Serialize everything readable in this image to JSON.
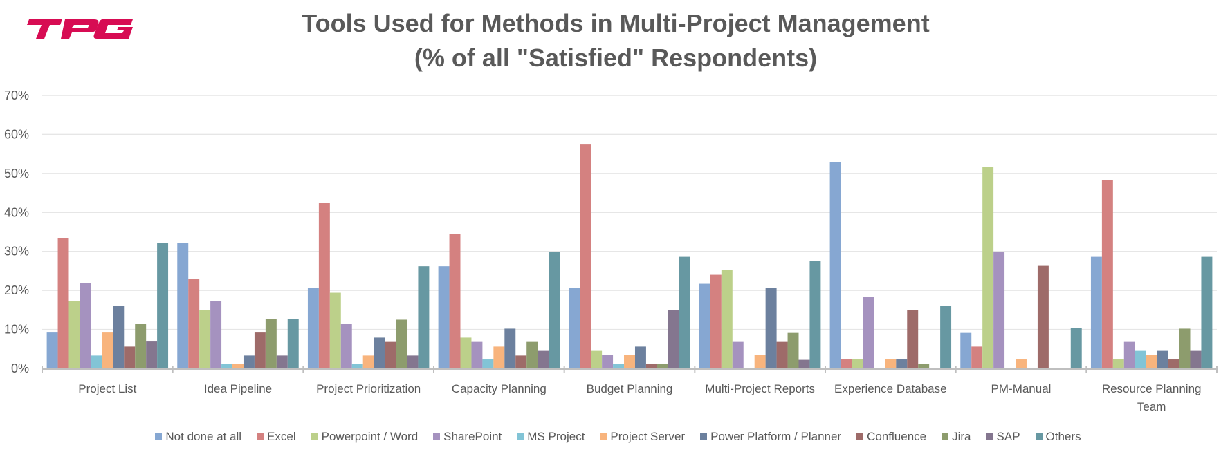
{
  "logo": {
    "text": "TPG",
    "color": "#D70C53"
  },
  "chart_data": {
    "type": "bar",
    "title": "Tools Used for Methods in Multi-Project Management",
    "subtitle": "(% of all \"Satisfied\" Respondents)",
    "xlabel": "",
    "ylabel": "",
    "ylim": [
      0,
      70
    ],
    "yticks": [
      "0%",
      "10%",
      "20%",
      "30%",
      "40%",
      "50%",
      "60%",
      "70%"
    ],
    "ytick_values": [
      0,
      10,
      20,
      30,
      40,
      50,
      60,
      70
    ],
    "grid": true,
    "legend_position": "bottom",
    "categories": [
      [
        "Project List"
      ],
      [
        "Idea Pipeline"
      ],
      [
        "Project Prioritization"
      ],
      [
        "Capacity Planning"
      ],
      [
        "Budget Planning"
      ],
      [
        "Multi-Project Reports"
      ],
      [
        "Experience Database"
      ],
      [
        "PM-Manual"
      ],
      [
        "Resource Planning",
        "Team"
      ]
    ],
    "series": [
      {
        "name": "Not done at all",
        "color": "#86A7D2",
        "values": [
          9.2,
          32.2,
          20.6,
          26.2,
          20.6,
          21.7,
          52.9,
          9.1,
          28.6
        ]
      },
      {
        "name": "Excel",
        "color": "#D48180",
        "values": [
          33.4,
          23.0,
          42.4,
          34.4,
          57.4,
          24.0,
          2.3,
          5.6,
          48.3
        ]
      },
      {
        "name": "Powerpoint / Word",
        "color": "#BCD08A",
        "values": [
          17.2,
          14.9,
          19.4,
          7.9,
          4.5,
          25.2,
          2.3,
          51.6,
          2.3
        ]
      },
      {
        "name": "SharePoint",
        "color": "#A592BF",
        "values": [
          21.8,
          17.2,
          11.4,
          6.8,
          3.4,
          6.8,
          18.4,
          29.9,
          6.8
        ]
      },
      {
        "name": "MS Project",
        "color": "#82C4D6",
        "values": [
          3.3,
          1.1,
          1.1,
          2.3,
          1.1,
          0,
          0,
          0,
          4.5
        ]
      },
      {
        "name": "Project Server",
        "color": "#F8B47D",
        "values": [
          9.2,
          1.1,
          3.3,
          5.6,
          3.4,
          3.4,
          2.3,
          2.3,
          3.4
        ]
      },
      {
        "name": "Power Platform / Planner",
        "color": "#6C809E",
        "values": [
          16.1,
          3.3,
          7.9,
          10.2,
          5.6,
          20.6,
          2.3,
          0,
          4.5
        ]
      },
      {
        "name": "Confluence",
        "color": "#9E6B69",
        "values": [
          5.6,
          9.2,
          6.8,
          3.3,
          1.1,
          6.8,
          14.9,
          26.3,
          2.3
        ]
      },
      {
        "name": "Jira",
        "color": "#8D9C6D",
        "values": [
          11.5,
          12.6,
          12.5,
          6.8,
          1.1,
          9.1,
          1.1,
          0,
          10.2
        ]
      },
      {
        "name": "SAP",
        "color": "#84768F",
        "values": [
          6.9,
          3.3,
          3.3,
          4.5,
          14.9,
          2.2,
          0,
          0,
          4.5
        ]
      },
      {
        "name": "Others",
        "color": "#6798A2",
        "values": [
          32.2,
          12.6,
          26.2,
          29.8,
          28.6,
          27.5,
          16.1,
          10.3,
          28.6
        ]
      }
    ],
    "colors": {
      "gridline": "#E6E6E6",
      "axis": "#BFBFBF",
      "text": "#595959"
    }
  }
}
